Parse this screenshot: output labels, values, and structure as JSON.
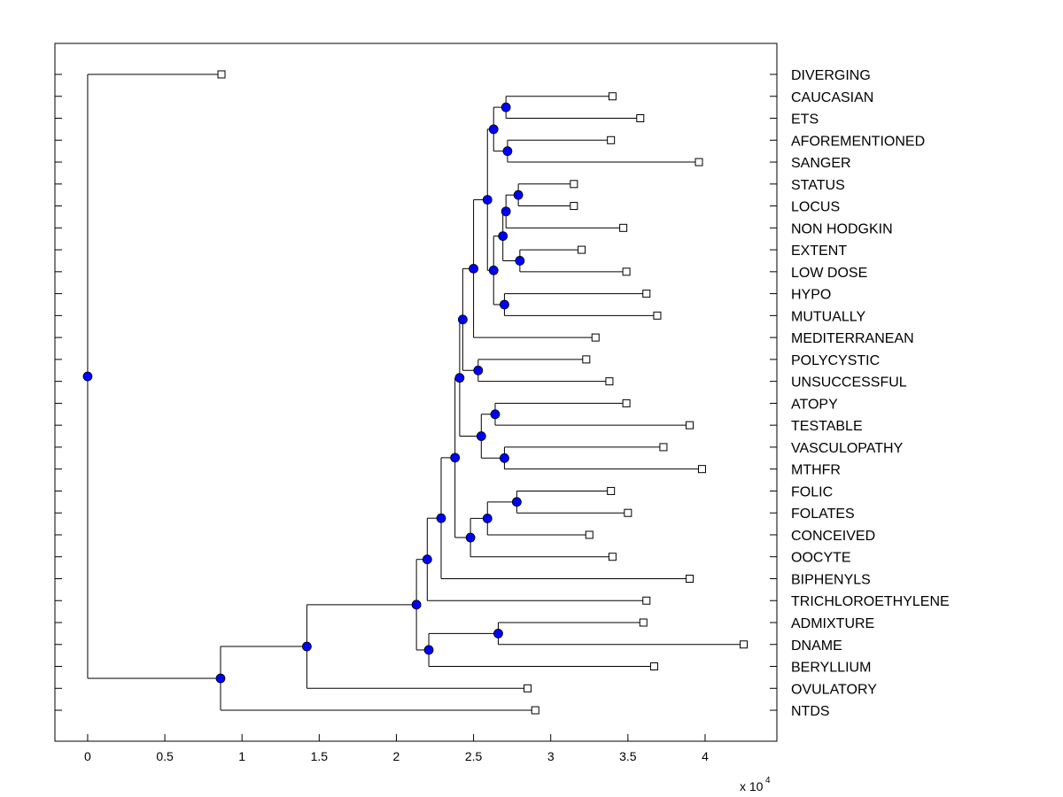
{
  "chart_data": {
    "type": "dendrogram",
    "title": "",
    "xlabel": "",
    "x_multiplier_label": "x 10",
    "x_multiplier_exponent": "4",
    "xlim": [
      -0.212,
      4.465
    ],
    "xticks": [
      0,
      0.5,
      1,
      1.5,
      2,
      2.5,
      3,
      3.5,
      4
    ],
    "xtick_labels": [
      "0",
      "0.5",
      "1",
      "1.5",
      "2",
      "2.5",
      "3",
      "3.5",
      "4"
    ],
    "leaf_colors": {
      "node_fill": "#0000ff",
      "node_edge": "#000000",
      "leaf_fill": "#ffffff",
      "line": "#000000"
    },
    "leaves": [
      {
        "label": "DIVERGING",
        "x": 0.867
      },
      {
        "label": "CAUCASIAN",
        "x": 3.4
      },
      {
        "label": "ETS",
        "x": 3.58
      },
      {
        "label": "AFOREMENTIONED",
        "x": 3.39
      },
      {
        "label": "SANGER",
        "x": 3.96
      },
      {
        "label": "STATUS",
        "x": 3.15
      },
      {
        "label": "LOCUS",
        "x": 3.15
      },
      {
        "label": "NON HODGKIN",
        "x": 3.47
      },
      {
        "label": "EXTENT",
        "x": 3.2
      },
      {
        "label": "LOW DOSE",
        "x": 3.49
      },
      {
        "label": "HYPO",
        "x": 3.62
      },
      {
        "label": "MUTUALLY",
        "x": 3.69
      },
      {
        "label": "MEDITERRANEAN",
        "x": 3.29
      },
      {
        "label": "POLYCYSTIC",
        "x": 3.23
      },
      {
        "label": "UNSUCCESSFUL",
        "x": 3.38
      },
      {
        "label": "ATOPY",
        "x": 3.49
      },
      {
        "label": "TESTABLE",
        "x": 3.9
      },
      {
        "label": "VASCULOPATHY",
        "x": 3.73
      },
      {
        "label": "MTHFR",
        "x": 3.98
      },
      {
        "label": "FOLIC",
        "x": 3.39
      },
      {
        "label": "FOLATES",
        "x": 3.5
      },
      {
        "label": "CONCEIVED",
        "x": 3.25
      },
      {
        "label": "OOCYTE",
        "x": 3.4
      },
      {
        "label": "BIPHENYLS",
        "x": 3.9
      },
      {
        "label": "TRICHLOROETHYLENE",
        "x": 3.62
      },
      {
        "label": "ADMIXTURE",
        "x": 3.6
      },
      {
        "label": "DNAME",
        "x": 4.25
      },
      {
        "label": "BERYLLIUM",
        "x": 3.67
      },
      {
        "label": "OVULATORY",
        "x": 2.85
      },
      {
        "label": "NTDS",
        "x": 2.9
      }
    ],
    "tree": {
      "x": 0,
      "c": [
        {
          "leaf": 0
        },
        {
          "x": 0.861,
          "c": [
            {
              "x": 1.42,
              "c": [
                {
                  "x": 2.13,
                  "c": [
                    {
                      "x": 2.2,
                      "c": [
                        {
                          "x": 2.29,
                          "c": [
                            {
                              "x": 2.38,
                              "c": [
                                {
                                  "x": 2.41,
                                  "c": [
                                    {
                                      "x": 2.43,
                                      "c": [
                                        {
                                          "x": 2.5,
                                          "c": [
                                            {
                                              "x": 2.59,
                                              "c": [
                                                {
                                                  "x": 2.63,
                                                  "c": [
                                                    {
                                                      "x": 2.71,
                                                      "c": [
                                                        {
                                                          "leaf": 1
                                                        },
                                                        {
                                                          "leaf": 2
                                                        }
                                                      ]
                                                    },
                                                    {
                                                      "x": 2.72,
                                                      "c": [
                                                        {
                                                          "leaf": 3
                                                        },
                                                        {
                                                          "leaf": 4
                                                        }
                                                      ]
                                                    }
                                                  ]
                                                },
                                                {
                                                  "x": 2.63,
                                                  "c": [
                                                    {
                                                      "x": 2.69,
                                                      "c": [
                                                        {
                                                          "x": 2.71,
                                                          "c": [
                                                            {
                                                              "x": 2.79,
                                                              "c": [
                                                                {
                                                                  "leaf": 5
                                                                },
                                                                {
                                                                  "leaf": 6
                                                                }
                                                              ]
                                                            },
                                                            {
                                                              "leaf": 7
                                                            }
                                                          ]
                                                        },
                                                        {
                                                          "x": 2.8,
                                                          "c": [
                                                            {
                                                              "leaf": 8
                                                            },
                                                            {
                                                              "leaf": 9
                                                            }
                                                          ]
                                                        }
                                                      ]
                                                    },
                                                    {
                                                      "x": 2.7,
                                                      "c": [
                                                        {
                                                          "leaf": 10
                                                        },
                                                        {
                                                          "leaf": 11
                                                        }
                                                      ]
                                                    }
                                                  ]
                                                }
                                              ]
                                            },
                                            {
                                              "leaf": 12
                                            }
                                          ]
                                        },
                                        {
                                          "x": 2.53,
                                          "c": [
                                            {
                                              "leaf": 13
                                            },
                                            {
                                              "leaf": 14
                                            }
                                          ]
                                        }
                                      ]
                                    },
                                    {
                                      "x": 2.55,
                                      "c": [
                                        {
                                          "x": 2.64,
                                          "c": [
                                            {
                                              "leaf": 15
                                            },
                                            {
                                              "leaf": 16
                                            }
                                          ]
                                        },
                                        {
                                          "x": 2.7,
                                          "c": [
                                            {
                                              "leaf": 17
                                            },
                                            {
                                              "leaf": 18
                                            }
                                          ]
                                        }
                                      ]
                                    }
                                  ]
                                },
                                {
                                  "x": 2.48,
                                  "c": [
                                    {
                                      "x": 2.59,
                                      "c": [
                                        {
                                          "x": 2.78,
                                          "c": [
                                            {
                                              "leaf": 19
                                            },
                                            {
                                              "leaf": 20
                                            }
                                          ]
                                        },
                                        {
                                          "leaf": 21
                                        }
                                      ]
                                    },
                                    {
                                      "leaf": 22
                                    }
                                  ]
                                }
                              ]
                            },
                            {
                              "leaf": 23
                            }
                          ]
                        },
                        {
                          "leaf": 24
                        }
                      ]
                    },
                    {
                      "x": 2.21,
                      "c": [
                        {
                          "x": 2.66,
                          "c": [
                            {
                              "leaf": 25
                            },
                            {
                              "leaf": 26
                            }
                          ]
                        },
                        {
                          "leaf": 27
                        }
                      ]
                    }
                  ]
                },
                {
                  "leaf": 28
                }
              ]
            },
            {
              "leaf": 29
            }
          ]
        }
      ]
    }
  }
}
